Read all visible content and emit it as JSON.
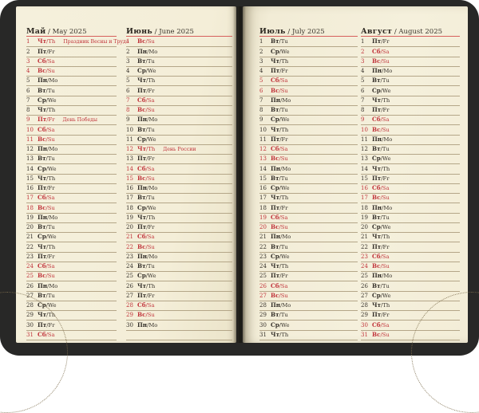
{
  "book": {
    "type_label": "planner-calendar-spread",
    "cover_color": "#282827",
    "paper_color": "#f4eed9",
    "accent_red": "#c0333a",
    "underline_red": "#d65f5c",
    "rule_color": "#b4a688",
    "year": "2025"
  },
  "weekday_map": {
    "Пн": "Mo",
    "Вт": "Tu",
    "Ср": "We",
    "Чт": "Th",
    "Пт": "Fr",
    "Сб": "Sa",
    "Вс": "Su"
  },
  "months": [
    {
      "name_ru": "Май",
      "name_en": "May",
      "year": "2025",
      "trailing_empty_rows": 0,
      "days": [
        [
          1,
          "Чт",
          1,
          "Праздник Весны и Труда"
        ],
        [
          2,
          "Пт",
          0
        ],
        [
          3,
          "Сб",
          1
        ],
        [
          4,
          "Вс",
          1
        ],
        [
          5,
          "Пн",
          0
        ],
        [
          6,
          "Вт",
          0
        ],
        [
          7,
          "Ср",
          0
        ],
        [
          8,
          "Чт",
          0
        ],
        [
          9,
          "Пт",
          1,
          "День Победы"
        ],
        [
          10,
          "Сб",
          1
        ],
        [
          11,
          "Вс",
          1
        ],
        [
          12,
          "Пн",
          0
        ],
        [
          13,
          "Вт",
          0
        ],
        [
          14,
          "Ср",
          0
        ],
        [
          15,
          "Чт",
          0
        ],
        [
          16,
          "Пт",
          0
        ],
        [
          17,
          "Сб",
          1
        ],
        [
          18,
          "Вс",
          1
        ],
        [
          19,
          "Пн",
          0
        ],
        [
          20,
          "Вт",
          0
        ],
        [
          21,
          "Ср",
          0
        ],
        [
          22,
          "Чт",
          0
        ],
        [
          23,
          "Пт",
          0
        ],
        [
          24,
          "Сб",
          1
        ],
        [
          25,
          "Вс",
          1
        ],
        [
          26,
          "Пн",
          0
        ],
        [
          27,
          "Вт",
          0
        ],
        [
          28,
          "Ср",
          0
        ],
        [
          29,
          "Чт",
          0
        ],
        [
          30,
          "Пт",
          0
        ],
        [
          31,
          "Сб",
          1
        ]
      ]
    },
    {
      "name_ru": "Июнь",
      "name_en": "June",
      "year": "2025",
      "trailing_empty_rows": 1,
      "days": [
        [
          1,
          "Вс",
          1
        ],
        [
          2,
          "Пн",
          0
        ],
        [
          3,
          "Вт",
          0
        ],
        [
          4,
          "Ср",
          0
        ],
        [
          5,
          "Чт",
          0
        ],
        [
          6,
          "Пт",
          0
        ],
        [
          7,
          "Сб",
          1
        ],
        [
          8,
          "Вс",
          1
        ],
        [
          9,
          "Пн",
          0
        ],
        [
          10,
          "Вт",
          0
        ],
        [
          11,
          "Ср",
          0
        ],
        [
          12,
          "Чт",
          1,
          "День России"
        ],
        [
          13,
          "Пт",
          0
        ],
        [
          14,
          "Сб",
          1
        ],
        [
          15,
          "Вс",
          1
        ],
        [
          16,
          "Пн",
          0
        ],
        [
          17,
          "Вт",
          0
        ],
        [
          18,
          "Ср",
          0
        ],
        [
          19,
          "Чт",
          0
        ],
        [
          20,
          "Пт",
          0
        ],
        [
          21,
          "Сб",
          1
        ],
        [
          22,
          "Вс",
          1
        ],
        [
          23,
          "Пн",
          0
        ],
        [
          24,
          "Вт",
          0
        ],
        [
          25,
          "Ср",
          0
        ],
        [
          26,
          "Чт",
          0
        ],
        [
          27,
          "Пт",
          0
        ],
        [
          28,
          "Сб",
          1
        ],
        [
          29,
          "Вс",
          1
        ],
        [
          30,
          "Пн",
          0
        ]
      ]
    },
    {
      "name_ru": "Июль",
      "name_en": "July",
      "year": "2025",
      "trailing_empty_rows": 0,
      "days": [
        [
          1,
          "Вт",
          0
        ],
        [
          2,
          "Ср",
          0
        ],
        [
          3,
          "Чт",
          0
        ],
        [
          4,
          "Пт",
          0
        ],
        [
          5,
          "Сб",
          1
        ],
        [
          6,
          "Вс",
          1
        ],
        [
          7,
          "Пн",
          0
        ],
        [
          8,
          "Вт",
          0
        ],
        [
          9,
          "Ср",
          0
        ],
        [
          10,
          "Чт",
          0
        ],
        [
          11,
          "Пт",
          0
        ],
        [
          12,
          "Сб",
          1
        ],
        [
          13,
          "Вс",
          1
        ],
        [
          14,
          "Пн",
          0
        ],
        [
          15,
          "Вт",
          0
        ],
        [
          16,
          "Ср",
          0
        ],
        [
          17,
          "Чт",
          0
        ],
        [
          18,
          "Пт",
          0
        ],
        [
          19,
          "Сб",
          1
        ],
        [
          20,
          "Вс",
          1
        ],
        [
          21,
          "Пн",
          0
        ],
        [
          22,
          "Вт",
          0
        ],
        [
          23,
          "Ср",
          0
        ],
        [
          24,
          "Чт",
          0
        ],
        [
          25,
          "Пт",
          0
        ],
        [
          26,
          "Сб",
          1
        ],
        [
          27,
          "Вс",
          1
        ],
        [
          28,
          "Пн",
          0
        ],
        [
          29,
          "Вт",
          0
        ],
        [
          30,
          "Ср",
          0
        ],
        [
          31,
          "Чт",
          0
        ]
      ]
    },
    {
      "name_ru": "Август",
      "name_en": "August",
      "year": "2025",
      "trailing_empty_rows": 0,
      "days": [
        [
          1,
          "Пт",
          0
        ],
        [
          2,
          "Сб",
          1
        ],
        [
          3,
          "Вс",
          1
        ],
        [
          4,
          "Пн",
          0
        ],
        [
          5,
          "Вт",
          0
        ],
        [
          6,
          "Ср",
          0
        ],
        [
          7,
          "Чт",
          0
        ],
        [
          8,
          "Пт",
          0
        ],
        [
          9,
          "Сб",
          1
        ],
        [
          10,
          "Вс",
          1
        ],
        [
          11,
          "Пн",
          0
        ],
        [
          12,
          "Вт",
          0
        ],
        [
          13,
          "Ср",
          0
        ],
        [
          14,
          "Чт",
          0
        ],
        [
          15,
          "Пт",
          0
        ],
        [
          16,
          "Сб",
          1
        ],
        [
          17,
          "Вс",
          1
        ],
        [
          18,
          "Пн",
          0
        ],
        [
          19,
          "Вт",
          0
        ],
        [
          20,
          "Ср",
          0
        ],
        [
          21,
          "Чт",
          0
        ],
        [
          22,
          "Пт",
          0
        ],
        [
          23,
          "Сб",
          1
        ],
        [
          24,
          "Вс",
          1
        ],
        [
          25,
          "Пн",
          0
        ],
        [
          26,
          "Вт",
          0
        ],
        [
          27,
          "Ср",
          0
        ],
        [
          28,
          "Чт",
          0
        ],
        [
          29,
          "Пт",
          0
        ],
        [
          30,
          "Сб",
          1
        ],
        [
          31,
          "Вс",
          1
        ]
      ]
    }
  ]
}
